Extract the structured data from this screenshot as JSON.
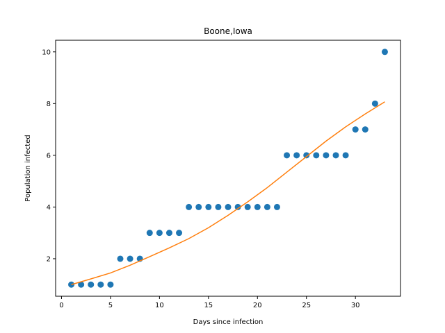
{
  "chart_data": {
    "type": "scatter",
    "title": "Boone,Iowa",
    "xlabel": "Days since infection",
    "ylabel": "Population infected",
    "xlim": [
      -0.6,
      34.6
    ],
    "ylim": [
      0.55,
      10.45
    ],
    "xticks": [
      0,
      5,
      10,
      15,
      20,
      25,
      30
    ],
    "yticks": [
      2,
      4,
      6,
      8,
      10
    ],
    "grid": false,
    "series": [
      {
        "kind": "scatter",
        "color": "#1f77b4",
        "x": [
          1,
          2,
          3,
          4,
          5,
          6,
          7,
          8,
          9,
          10,
          11,
          12,
          13,
          14,
          15,
          16,
          17,
          18,
          19,
          20,
          21,
          22,
          23,
          24,
          25,
          26,
          27,
          28,
          29,
          30,
          31,
          32,
          33
        ],
        "y": [
          1,
          1,
          1,
          1,
          1,
          2,
          2,
          2,
          3,
          3,
          3,
          3,
          4,
          4,
          4,
          4,
          4,
          4,
          4,
          4,
          4,
          4,
          6,
          6,
          6,
          6,
          6,
          6,
          6,
          7,
          7,
          8,
          10
        ]
      },
      {
        "kind": "line",
        "color": "#ff7f0e",
        "x": [
          1,
          3,
          5,
          7,
          9,
          11,
          13,
          15,
          17,
          19,
          21,
          23,
          25,
          27,
          29,
          31,
          33
        ],
        "y": [
          1.0,
          1.22,
          1.45,
          1.75,
          2.08,
          2.42,
          2.78,
          3.2,
          3.68,
          4.2,
          4.75,
          5.35,
          5.95,
          6.55,
          7.1,
          7.6,
          8.07
        ]
      }
    ]
  }
}
